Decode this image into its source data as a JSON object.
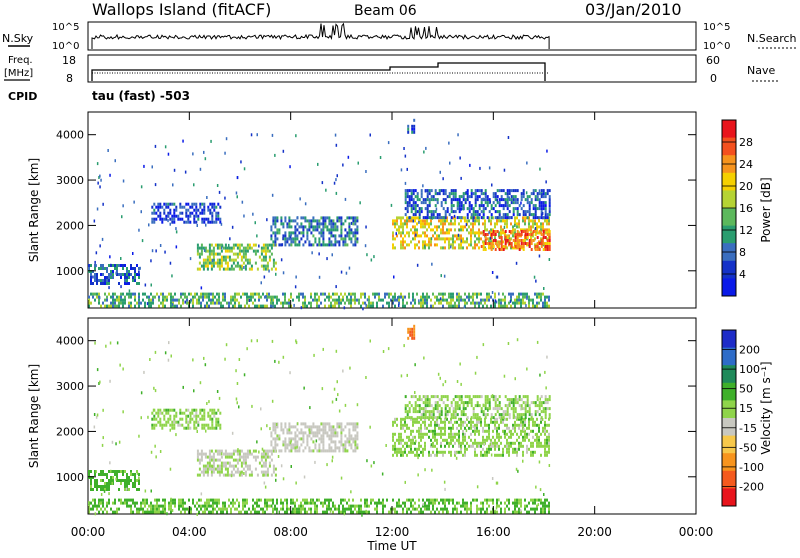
{
  "header": {
    "station": "Wallops Island (fitACF)",
    "beam": "Beam 06",
    "date": "03/Jan/2010"
  },
  "side_labels": {
    "nsky": "N.Sky",
    "nsky_hi": "10^5",
    "nsky_lo": "10^0",
    "freq": "Freq.",
    "freq_unit": "[MHz]",
    "freq_hi": "18",
    "freq_lo": "8",
    "cpid": "CPID",
    "cpid_value": "tau (fast) -503",
    "nsearch": "N.Search",
    "nave": "Nave",
    "nave_hi": "60",
    "nave_lo": "0",
    "right_hi": "10^5",
    "right_lo": "10^0"
  },
  "colorbars": {
    "power": {
      "label": "Power [dB]",
      "ticks": [
        "28",
        "24",
        "20",
        "16",
        "12",
        "8",
        "4"
      ],
      "colors": [
        "#e8141c",
        "#f4501e",
        "#f7941d",
        "#f5d000",
        "#b5d334",
        "#5cb85c",
        "#2a9d6f",
        "#3a6ebf",
        "#1432c8",
        "#0a1ae8"
      ]
    },
    "velocity": {
      "label": "Velocity [m s⁻¹]",
      "ticks": [
        "200",
        "100",
        "50",
        "15",
        "-15",
        "-50",
        "-100",
        "-200"
      ],
      "colors": [
        "#1e2cc8",
        "#2e6cc8",
        "#1f8a5a",
        "#3fb02a",
        "#8fd44a",
        "#c8c8c0",
        "#f7c84a",
        "#f7941d",
        "#f45a1e",
        "#e8141c"
      ]
    }
  },
  "chart_data": [
    {
      "type": "heatmap",
      "title": "Power",
      "xlabel": "Time UT",
      "ylabel": "Slant Range [km]",
      "x_ticks": [
        "00:00",
        "04:00",
        "08:00",
        "12:00",
        "16:00",
        "20:00",
        "00:00"
      ],
      "y_ticks": [
        "1000",
        "2000",
        "3000",
        "4000"
      ],
      "xlim": [
        0,
        24
      ],
      "ylim": [
        180,
        4500
      ],
      "data_end_hour": 18.2,
      "regions": [
        {
          "t0": 0.0,
          "t1": 2.0,
          "r0": 750,
          "r1": 1150,
          "value": 8
        },
        {
          "t0": 4.3,
          "t1": 7.4,
          "r0": 1050,
          "r1": 1600,
          "value": 16
        },
        {
          "t0": 7.2,
          "t1": 10.6,
          "r0": 1600,
          "r1": 2200,
          "value": 10
        },
        {
          "t0": 2.5,
          "t1": 5.2,
          "r0": 2100,
          "r1": 2500,
          "value": 6
        },
        {
          "t0": 12.0,
          "t1": 18.2,
          "r0": 1500,
          "r1": 2200,
          "value": 20
        },
        {
          "t0": 15.5,
          "t1": 18.2,
          "r0": 1500,
          "r1": 1900,
          "value": 26
        },
        {
          "t0": 12.5,
          "t1": 18.2,
          "r0": 2200,
          "r1": 2800,
          "value": 8
        },
        {
          "t0": 12.6,
          "t1": 12.85,
          "r0": 4080,
          "r1": 4350,
          "value": 8
        },
        {
          "t0": 0.0,
          "t1": 18.2,
          "r0": 190,
          "r1": 520,
          "value": 14
        }
      ]
    },
    {
      "type": "heatmap",
      "title": "Velocity",
      "xlabel": "Time UT",
      "ylabel": "Slant Range [km]",
      "x_ticks": [
        "00:00",
        "04:00",
        "08:00",
        "12:00",
        "16:00",
        "20:00",
        "00:00"
      ],
      "y_ticks": [
        "1000",
        "2000",
        "3000",
        "4000"
      ],
      "xlim": [
        0,
        24
      ],
      "ylim": [
        180,
        4500
      ],
      "data_end_hour": 18.2,
      "regions": [
        {
          "t0": 0.0,
          "t1": 2.0,
          "r0": 750,
          "r1": 1150,
          "value": 30
        },
        {
          "t0": 4.3,
          "t1": 7.4,
          "r0": 1050,
          "r1": 1600,
          "value": -20
        },
        {
          "t0": 7.2,
          "t1": 10.6,
          "r0": 1600,
          "r1": 2200,
          "value": -30
        },
        {
          "t0": 2.5,
          "t1": 5.2,
          "r0": 2100,
          "r1": 2500,
          "value": 0
        },
        {
          "t0": 12.0,
          "t1": 18.2,
          "r0": 1500,
          "r1": 2300,
          "value": 0
        },
        {
          "t0": 12.5,
          "t1": 18.2,
          "r0": 2300,
          "r1": 2800,
          "value": 0
        },
        {
          "t0": 12.6,
          "t1": 12.85,
          "r0": 4080,
          "r1": 4350,
          "value": -200
        },
        {
          "t0": 0.0,
          "t1": 18.2,
          "r0": 190,
          "r1": 520,
          "value": 20
        }
      ]
    }
  ]
}
